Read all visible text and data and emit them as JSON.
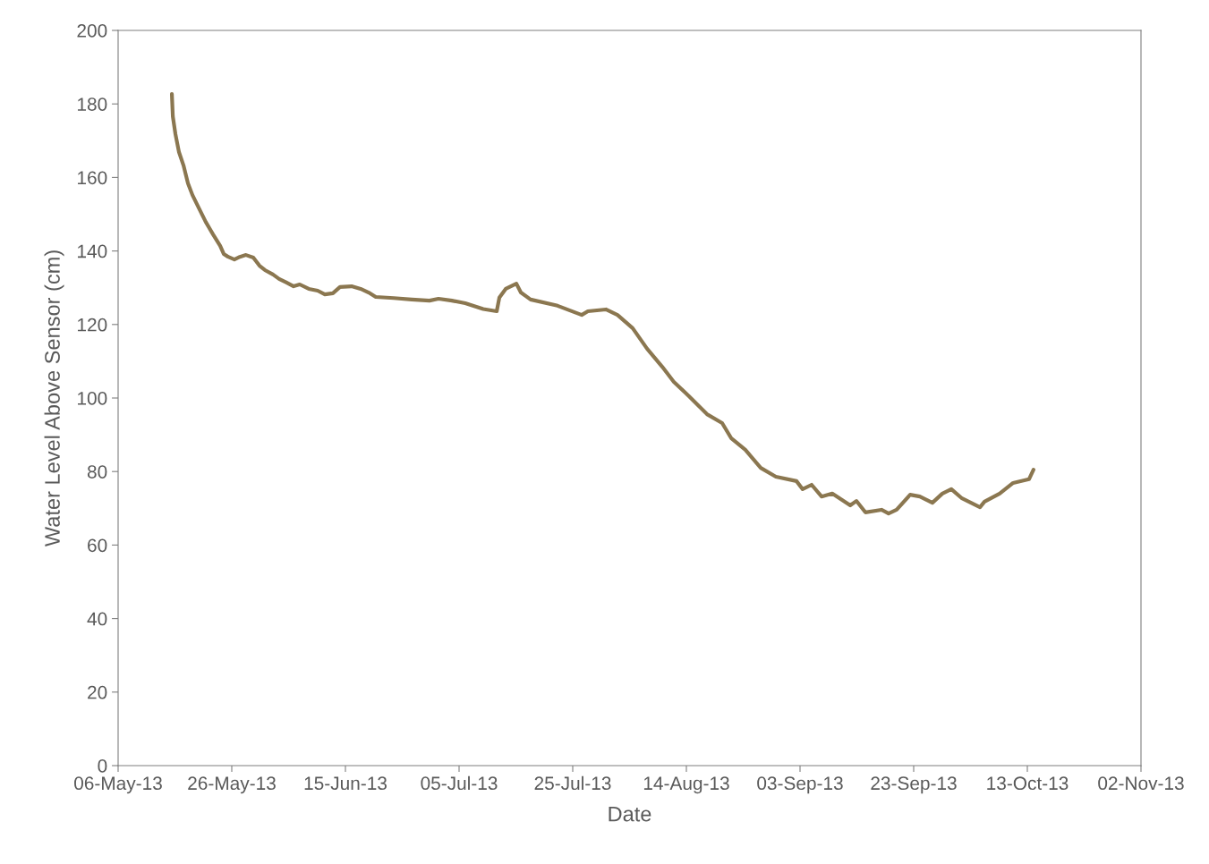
{
  "chart_data": {
    "type": "line",
    "xlabel": "Date",
    "ylabel": "Water Level Above Sensor (cm)",
    "xlim": [
      "2013-05-06",
      "2013-11-02"
    ],
    "xticks": [
      {
        "value": "2013-05-06",
        "label": "06-May-13"
      },
      {
        "value": "2013-05-26",
        "label": "26-May-13"
      },
      {
        "value": "2013-06-15",
        "label": "15-Jun-13"
      },
      {
        "value": "2013-07-05",
        "label": "05-Jul-13"
      },
      {
        "value": "2013-07-25",
        "label": "25-Jul-13"
      },
      {
        "value": "2013-08-14",
        "label": "14-Aug-13"
      },
      {
        "value": "2013-09-03",
        "label": "03-Sep-13"
      },
      {
        "value": "2013-09-23",
        "label": "23-Sep-13"
      },
      {
        "value": "2013-10-13",
        "label": "13-Oct-13"
      },
      {
        "value": "2013-11-02",
        "label": "02-Nov-13"
      }
    ],
    "ylim": [
      0,
      200
    ],
    "yticks": [
      0,
      20,
      40,
      60,
      80,
      100,
      120,
      140,
      160,
      180,
      200
    ],
    "grid": false,
    "legend": false,
    "marker": "none",
    "line_style": "solid",
    "x": [
      "2013-05-15T11:00",
      "2013-05-15T15:00",
      "2013-05-16T02:00",
      "2013-05-16T17:00",
      "2013-05-17T12:00",
      "2013-05-18T07:00",
      "2013-05-19T02:00",
      "2013-05-20T04:00",
      "2013-05-21T10:00",
      "2013-05-22T17:00",
      "2013-05-23T23:00",
      "2013-05-24T14:00",
      "2013-05-25T09:00",
      "2013-05-26T11:00",
      "2013-05-27T10:00",
      "2013-05-28T12:00",
      "2013-05-29T19:00",
      "2013-05-30T21:00",
      "2013-05-31T20:00",
      "2013-06-02T06:00",
      "2013-06-03T08:00",
      "2013-06-04T15:00",
      "2013-06-05T21:00",
      "2013-06-06T23:00",
      "2013-06-08T13:00",
      "2013-06-10T03:00",
      "2013-06-11T09:00",
      "2013-06-12T19:00",
      "2013-06-14T01:00",
      "2013-06-16T02:00",
      "2013-06-17T16:00",
      "2013-06-19T02:00",
      "2013-06-20T08:00",
      "2013-06-23T12:00",
      "2013-06-26T16:00",
      "2013-06-29T19:00",
      "2013-07-01T09:00",
      "2013-07-03T18:00",
      "2013-07-06T02:00",
      "2013-07-09T06:00",
      "2013-07-11T15:00",
      "2013-07-12T02:00",
      "2013-07-13T05:00",
      "2013-07-15T02:00",
      "2013-07-15T21:00",
      "2013-07-17T14:00",
      "2013-07-22T08:00",
      "2013-07-26T14:00",
      "2013-07-27T16:00",
      "2013-07-30T20:00",
      "2013-08-01T21:00",
      "2013-08-04T13:00",
      "2013-08-07T02:00",
      "2013-08-09T18:00",
      "2013-08-11T19:00",
      "2013-08-14T11:00",
      "2013-08-17T15:00",
      "2013-08-20T07:00",
      "2013-08-21T21:00",
      "2013-08-24T09:00",
      "2013-08-27T02:00",
      "2013-08-29T18:00",
      "2013-09-02T09:00",
      "2013-09-03T11:00",
      "2013-09-05T01:00",
      "2013-09-06T19:00",
      "2013-09-08T16:00",
      "2013-09-11T20:00",
      "2013-09-12T22:00",
      "2013-09-14T12:00",
      "2013-09-17T08:00",
      "2013-09-18T14:00",
      "2013-09-20T00:00",
      "2013-09-22T09:00",
      "2013-09-24T02:00",
      "2013-09-26T07:00",
      "2013-09-28T01:00",
      "2013-09-29T15:00",
      "2013-10-01T12:00",
      "2013-10-04T16:00",
      "2013-10-05T11:00",
      "2013-10-08T03:00",
      "2013-10-10T12:00",
      "2013-10-13T07:00",
      "2013-10-14T02:00"
    ],
    "series": [
      {
        "color": "#8b7750",
        "values": [
          182.7,
          176.6,
          171.8,
          166.9,
          163.3,
          158.4,
          155.2,
          151.8,
          147.9,
          144.5,
          141.4,
          139.2,
          138.4,
          137.7,
          138.4,
          138.9,
          138.2,
          136.0,
          134.8,
          133.6,
          132.4,
          131.4,
          130.4,
          130.9,
          129.7,
          129.2,
          128.2,
          128.5,
          130.2,
          130.4,
          129.7,
          128.7,
          127.5,
          127.2,
          126.8,
          126.5,
          127.0,
          126.5,
          125.8,
          124.2,
          123.6,
          127.3,
          129.7,
          131.1,
          128.7,
          126.8,
          125.1,
          122.6,
          123.6,
          124.1,
          122.6,
          119.0,
          113.4,
          108.5,
          104.4,
          100.5,
          95.6,
          93.2,
          89.1,
          85.9,
          81.0,
          78.6,
          77.4,
          75.2,
          76.4,
          73.2,
          74.0,
          70.8,
          72.0,
          68.9,
          69.6,
          68.6,
          69.6,
          73.7,
          73.2,
          71.5,
          74.0,
          75.2,
          72.7,
          70.3,
          71.8,
          74.0,
          76.9,
          77.9,
          80.5
        ]
      }
    ]
  }
}
